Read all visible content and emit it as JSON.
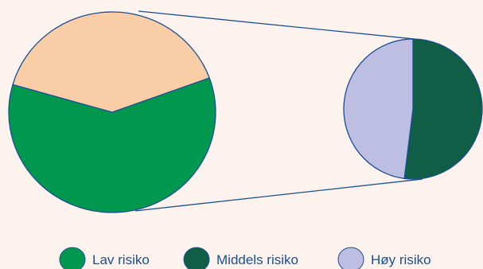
{
  "chart_data": {
    "type": "pie",
    "title": "",
    "pies": [
      {
        "id": "main",
        "slices": [
          {
            "label": "",
            "value": 60,
            "color": "#00984f"
          },
          {
            "label": "",
            "value": 40,
            "color": "#f9cea6"
          }
        ]
      },
      {
        "id": "detail",
        "slices": [
          {
            "label": "Middels risiko",
            "value": 52,
            "color": "#0f5e45"
          },
          {
            "label": "Høy risiko",
            "value": 48,
            "color": "#bebde2"
          }
        ]
      }
    ],
    "legend": {
      "placement": "bottom",
      "entries": [
        {
          "label": "Lav risiko",
          "color": "#00984f"
        },
        {
          "label": "Middels risiko",
          "color": "#0f5e45"
        },
        {
          "label": "Høy risiko",
          "color": "#bebde2"
        }
      ]
    },
    "colors": {
      "outline": "#1c4f96",
      "text": "#1c4f96",
      "background": "#fdf3ee"
    }
  }
}
